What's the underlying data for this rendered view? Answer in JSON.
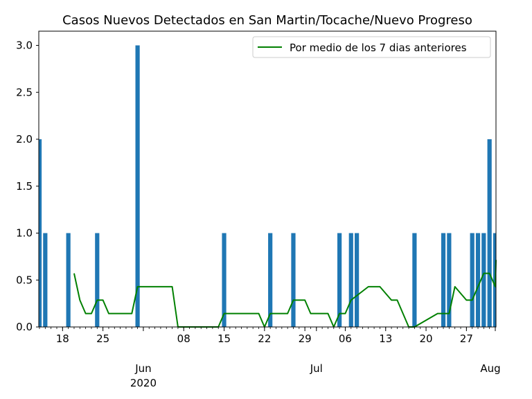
{
  "chart_data": {
    "type": "bar",
    "title": "Casos Nuevos Detectados en San Martin/Tocache/Nuevo Progreso",
    "xlabel": "",
    "ylabel": "",
    "x_range": [
      "2020-05-14",
      "2020-08-01"
    ],
    "ylim": [
      0,
      3.0
    ],
    "grid": false,
    "legend_position": "top-right",
    "colors": {
      "bars": "#1f77b4",
      "line": "#008000"
    },
    "y_ticks": [
      "0.0",
      "0.5",
      "1.0",
      "1.5",
      "2.0",
      "2.5",
      "3.0"
    ],
    "x_ticks": [
      {
        "date": "2020-05-18",
        "label": "18"
      },
      {
        "date": "2020-05-25",
        "label": "25"
      },
      {
        "date": "2020-06-08",
        "label": "08"
      },
      {
        "date": "2020-06-15",
        "label": "15"
      },
      {
        "date": "2020-06-22",
        "label": "22"
      },
      {
        "date": "2020-06-29",
        "label": "29"
      },
      {
        "date": "2020-07-06",
        "label": "06"
      },
      {
        "date": "2020-07-13",
        "label": "13"
      },
      {
        "date": "2020-07-20",
        "label": "20"
      },
      {
        "date": "2020-07-27",
        "label": "27"
      }
    ],
    "month_labels": [
      {
        "date": "2020-06-01",
        "label": "Jun",
        "year": "2020"
      },
      {
        "date": "2020-07-01",
        "label": "Jul"
      },
      {
        "date": "2020-08-01",
        "label": "Aug"
      }
    ],
    "bars": {
      "dates": [
        "2020-05-14",
        "2020-05-15",
        "2020-05-19",
        "2020-05-24",
        "2020-05-31",
        "2020-06-15",
        "2020-06-23",
        "2020-06-27",
        "2020-07-05",
        "2020-07-07",
        "2020-07-08",
        "2020-07-18",
        "2020-07-23",
        "2020-07-24",
        "2020-07-28",
        "2020-07-29",
        "2020-07-30",
        "2020-07-31",
        "2020-08-01"
      ],
      "values": [
        2,
        1,
        1,
        1,
        3,
        1,
        1,
        1,
        1,
        1,
        1,
        1,
        1,
        1,
        1,
        1,
        1,
        2,
        1
      ]
    },
    "series": [
      {
        "name": "Por medio de los 7 dias anteriores",
        "dates": [
          "2020-05-20",
          "2020-05-21",
          "2020-05-22",
          "2020-05-23",
          "2020-05-24",
          "2020-05-25",
          "2020-05-26",
          "2020-05-30",
          "2020-05-31",
          "2020-06-06",
          "2020-06-07",
          "2020-06-13",
          "2020-06-14",
          "2020-06-15",
          "2020-06-21",
          "2020-06-22",
          "2020-06-23",
          "2020-06-26",
          "2020-06-27",
          "2020-06-29",
          "2020-06-30",
          "2020-07-03",
          "2020-07-04",
          "2020-07-05",
          "2020-07-06",
          "2020-07-07",
          "2020-07-10",
          "2020-07-11",
          "2020-07-12",
          "2020-07-14",
          "2020-07-15",
          "2020-07-17",
          "2020-07-18",
          "2020-07-22",
          "2020-07-24",
          "2020-07-25",
          "2020-07-27",
          "2020-07-28",
          "2020-07-29",
          "2020-07-30",
          "2020-07-31",
          "2020-08-01",
          "2020-08-02"
        ],
        "values": [
          0.571,
          0.286,
          0.143,
          0.143,
          0.286,
          0.286,
          0.143,
          0.143,
          0.429,
          0.429,
          0.0,
          0.0,
          0.0,
          0.143,
          0.143,
          0.0,
          0.143,
          0.143,
          0.286,
          0.286,
          0.143,
          0.143,
          0.0,
          0.143,
          0.143,
          0.286,
          0.429,
          0.429,
          0.429,
          0.286,
          0.286,
          0.0,
          0.0,
          0.143,
          0.143,
          0.429,
          0.286,
          0.286,
          0.429,
          0.571,
          0.571,
          0.429,
          0.714
        ]
      }
    ]
  }
}
